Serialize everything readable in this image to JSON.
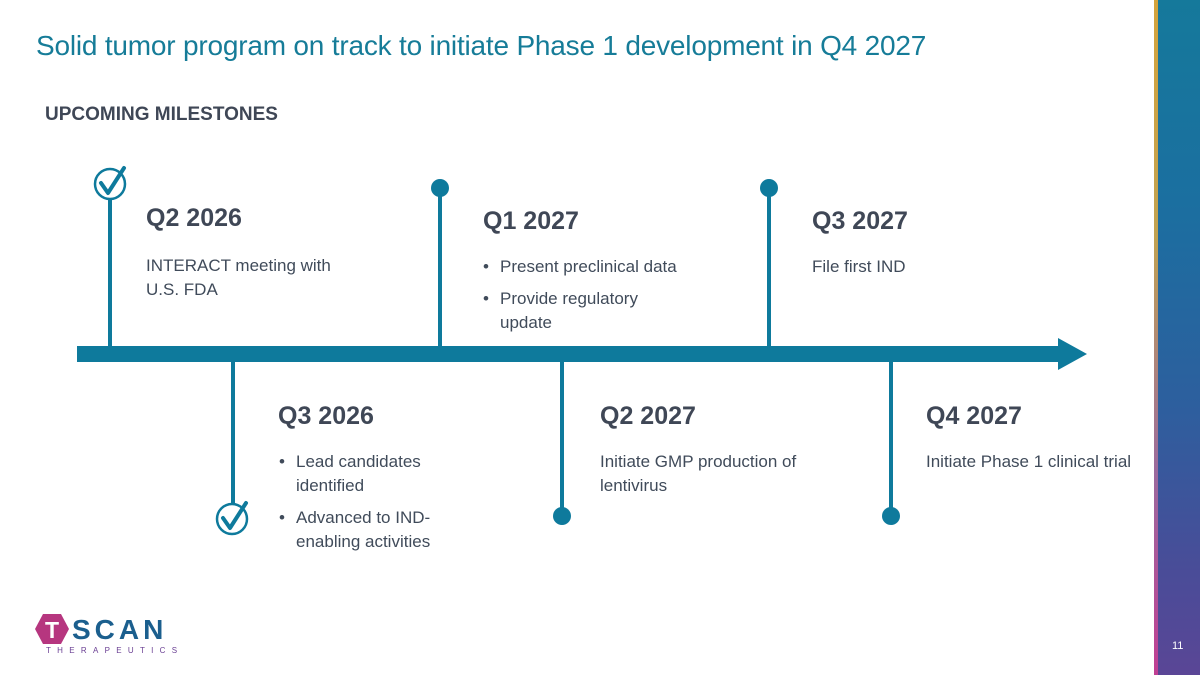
{
  "slide": {
    "title": "Solid tumor program on track to initiate Phase 1 development in Q4 2027",
    "subtitle": "UPCOMING MILESTONES",
    "page_number": "11"
  },
  "colors": {
    "accent": "#167c98",
    "timeline": "#0e7a9c",
    "text": "#404b5a"
  },
  "milestones": [
    {
      "date": "Q2 2026",
      "text": "INTERACT meeting with U.S. FDA",
      "completed": true
    },
    {
      "date": "Q3 2026",
      "bullets": [
        "Lead candidates identified",
        "Advanced to IND-enabling activities"
      ],
      "completed": true
    },
    {
      "date": "Q1 2027",
      "bullets": [
        "Present preclinical data",
        "Provide regulatory update"
      ],
      "completed": false
    },
    {
      "date": "Q2 2027",
      "text": "Initiate GMP production of lentivirus",
      "completed": false
    },
    {
      "date": "Q3 2027",
      "text": "File first IND",
      "completed": false
    },
    {
      "date": "Q4 2027",
      "text": "Initiate Phase 1 clinical trial",
      "completed": false
    }
  ],
  "logo": {
    "letter": "T",
    "word": "SCAN",
    "tagline": "THERAPEUTICS"
  }
}
